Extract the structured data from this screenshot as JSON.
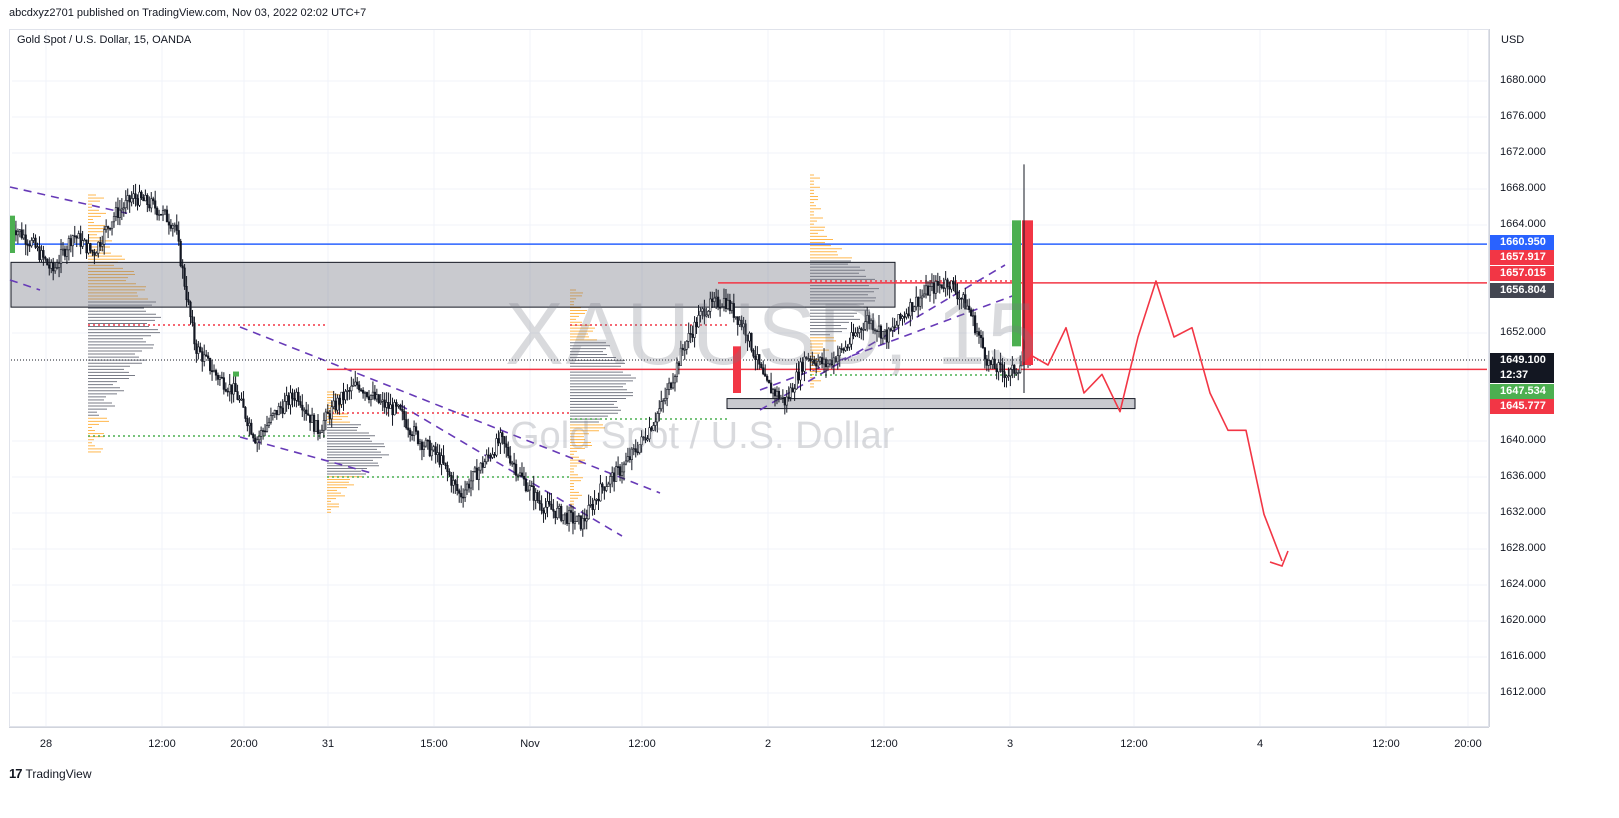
{
  "header": {
    "published": "abcdxyz2701 published on TradingView.com, Nov 03, 2022 02:02 UTC+7",
    "symbol": "Gold Spot / U.S. Dollar, 15, OANDA"
  },
  "watermark": {
    "main": "XAUUSD, 15",
    "sub": "Gold Spot / U.S. Dollar"
  },
  "price_axis": {
    "currency": "USD",
    "ticks": [
      "1680.000",
      "1676.000",
      "1672.000",
      "1668.000",
      "1664.000",
      "1652.000",
      "1640.000",
      "1636.000",
      "1632.000",
      "1628.000",
      "1624.000",
      "1620.000",
      "1616.000",
      "1612.000"
    ]
  },
  "price_tags": [
    {
      "label": "1660.950",
      "color": "#2962ff"
    },
    {
      "label": "1657.917",
      "color": "#f23645"
    },
    {
      "label": "1657.015",
      "color": "#f23645"
    },
    {
      "label": "1656.804",
      "color": "#434651"
    },
    {
      "label": "1649.100",
      "color": "#131722"
    },
    {
      "label": "12:37",
      "color": "#131722"
    },
    {
      "label": "1647.534",
      "color": "#4caf50"
    },
    {
      "label": "1645.777",
      "color": "#f23645"
    }
  ],
  "time_axis": {
    "labels": [
      "28",
      "12:00",
      "20:00",
      "31",
      "15:00",
      "Nov",
      "12:00",
      "2",
      "12:00",
      "3",
      "12:00",
      "4",
      "12:00",
      "20:00"
    ]
  },
  "footer": {
    "logo": "17",
    "brand": "TradingView"
  },
  "chart_data": {
    "type": "line",
    "title": "Gold Spot / U.S. Dollar, 15, OANDA",
    "xlabel": "",
    "ylabel": "USD",
    "ylim": [
      1609,
      1684
    ],
    "grid": true,
    "series": [
      {
        "name": "XAUUSD",
        "values": [
          1663,
          1661,
          1658,
          1662,
          1660,
          1664,
          1666,
          1665,
          1663,
          1650,
          1647,
          1645,
          1640,
          1643,
          1645,
          1641,
          1644,
          1646,
          1644,
          1643,
          1640,
          1638,
          1634,
          1637,
          1640,
          1636,
          1633,
          1632,
          1631,
          1635,
          1637,
          1640,
          1644,
          1650,
          1654,
          1655,
          1652,
          1646,
          1644,
          1649,
          1648,
          1650,
          1653,
          1651,
          1654,
          1656,
          1657,
          1654,
          1648,
          1647,
          1649.1
        ]
      },
      {
        "name": "Projection",
        "values": [
          1649.1,
          1648,
          1652,
          1645,
          1647,
          1643,
          1651,
          1657,
          1651,
          1652,
          1645,
          1641,
          1641,
          1632,
          1627
        ]
      }
    ],
    "levels": [
      {
        "price": 1660.95,
        "color": "#2962ff"
      },
      {
        "price": 1656.804,
        "color": "#f23645"
      },
      {
        "price": 1647.534,
        "color": "#f23645"
      }
    ],
    "zones": [
      {
        "top": 1659,
        "bottom": 1654.2
      },
      {
        "top": 1644.4,
        "bottom": 1643.4
      }
    ]
  }
}
